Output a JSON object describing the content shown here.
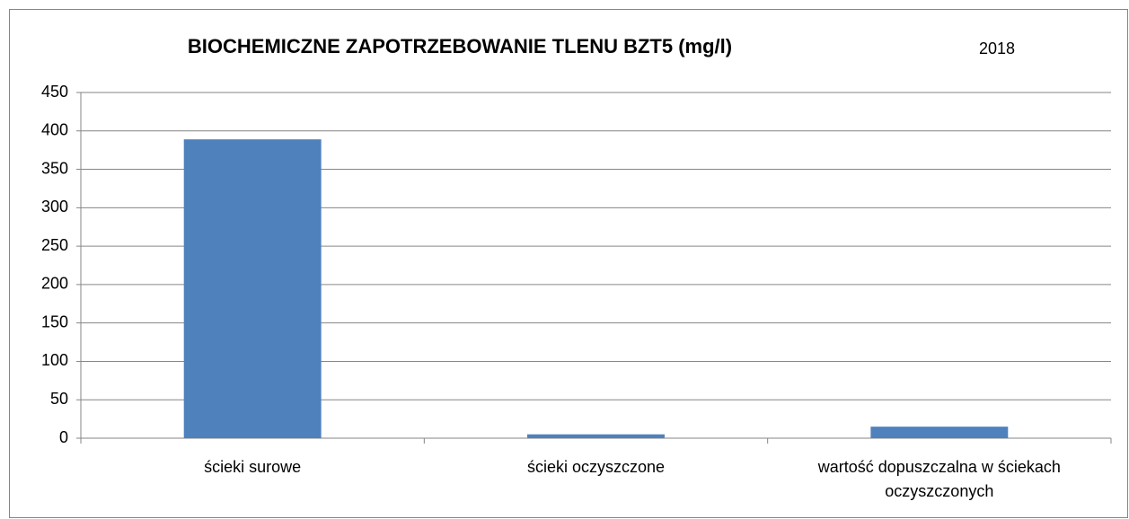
{
  "chart_data": {
    "type": "bar",
    "title": "BIOCHEMICZNE ZAPOTRZEBOWANIE TLENU BZT5 (mg/l)",
    "categories": [
      "ścieki surowe",
      "ścieki oczyszczone",
      "wartość dopuszczalna w ściekach oczyszczonych"
    ],
    "series": [
      {
        "name": "2018",
        "color": "#4f81bd",
        "values": [
          389,
          5,
          15
        ]
      }
    ],
    "ylim": [
      0,
      450
    ],
    "yticks": [
      0,
      50,
      100,
      150,
      200,
      250,
      300,
      350,
      400,
      450
    ],
    "grid": true,
    "legend": "top"
  }
}
